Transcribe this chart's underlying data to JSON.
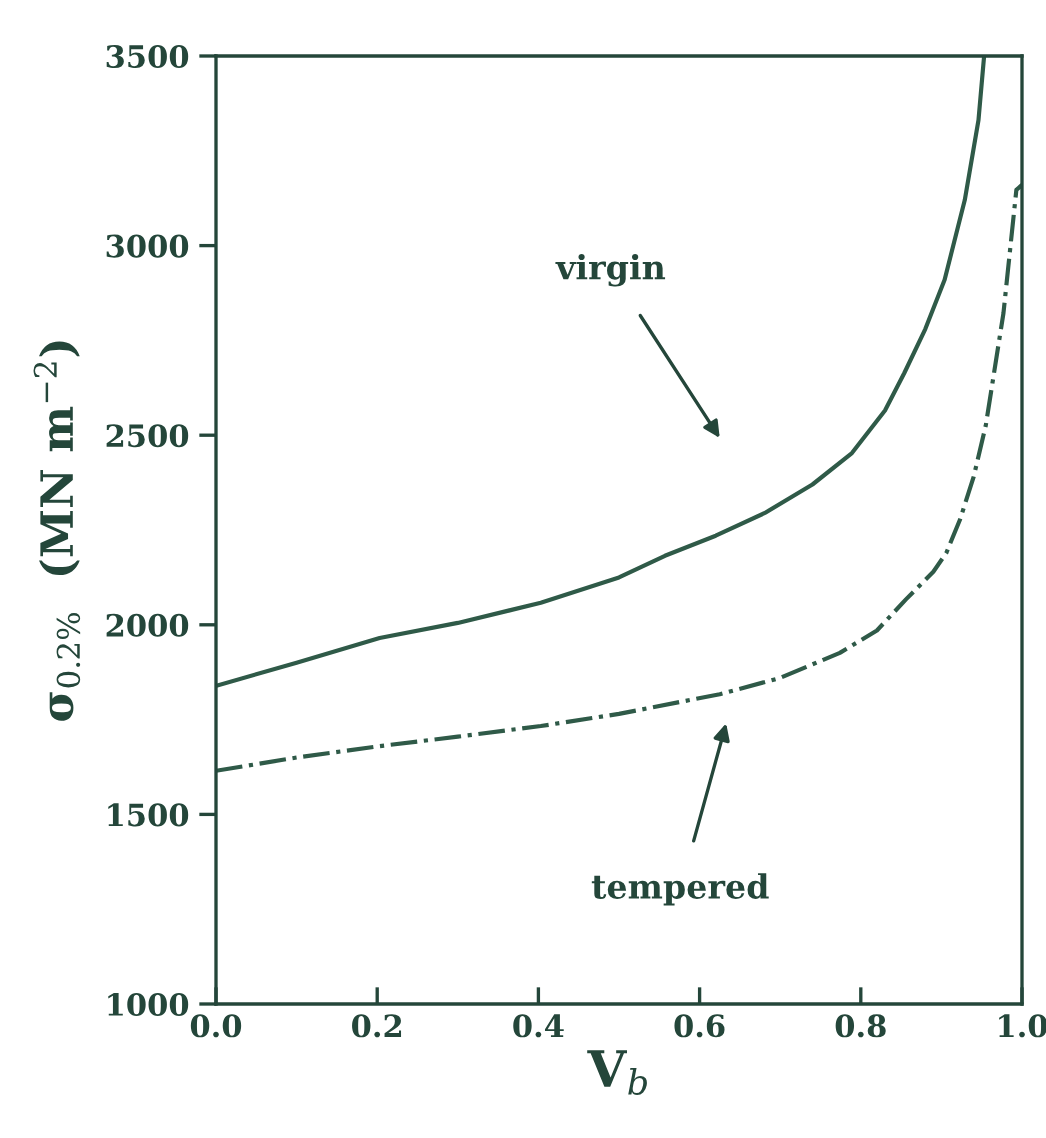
{
  "chart_data": {
    "type": "line",
    "xlabel": "V$_{b}$",
    "ylabel": "σ$_{0.2%}$  (MN m$^{−2}$)",
    "xlim": [
      0,
      1
    ],
    "ylim": [
      1000,
      3500
    ],
    "xticks": [
      {
        "value": 0,
        "label": "0.0"
      },
      {
        "value": 0.2,
        "label": "0.2"
      },
      {
        "value": 0.4,
        "label": "0.4"
      },
      {
        "value": 0.6,
        "label": "0.6"
      },
      {
        "value": 0.8,
        "label": "0.8"
      },
      {
        "value": 1,
        "label": "1.0"
      }
    ],
    "yticks": [
      1000,
      1500,
      2000,
      2500,
      3000,
      3500
    ],
    "grid": false,
    "legend": false,
    "marker": "none",
    "series": [
      {
        "color": "#2f5a48",
        "line_style": "solid",
        "x": [
          0,
          0.1,
          0.203,
          0.3,
          0.403,
          0.5,
          0.557,
          0.62,
          0.681,
          0.74,
          0.789,
          0.83,
          0.854,
          0.88,
          0.904,
          0.929,
          0.946,
          0.953
        ],
        "values": [
          1839,
          1900,
          1965,
          2005,
          2058,
          2125,
          2182,
          2235,
          2295,
          2370,
          2453,
          2565,
          2664,
          2780,
          2910,
          3120,
          3331,
          3500
        ]
      },
      {
        "color": "#2f5a48",
        "line_style": "dashdot",
        "x": [
          0,
          0.1,
          0.203,
          0.3,
          0.403,
          0.5,
          0.625,
          0.7,
          0.774,
          0.82,
          0.856,
          0.89,
          0.906,
          0.923,
          0.94,
          0.955,
          0.977,
          0.993,
          1.0
        ],
        "values": [
          1615,
          1650,
          1680,
          1705,
          1733,
          1765,
          1817,
          1860,
          1926,
          1985,
          2067,
          2140,
          2189,
          2277,
          2390,
          2525,
          2822,
          3147,
          3160
        ]
      }
    ],
    "annotations": [
      "virgin",
      "tempered"
    ]
  }
}
